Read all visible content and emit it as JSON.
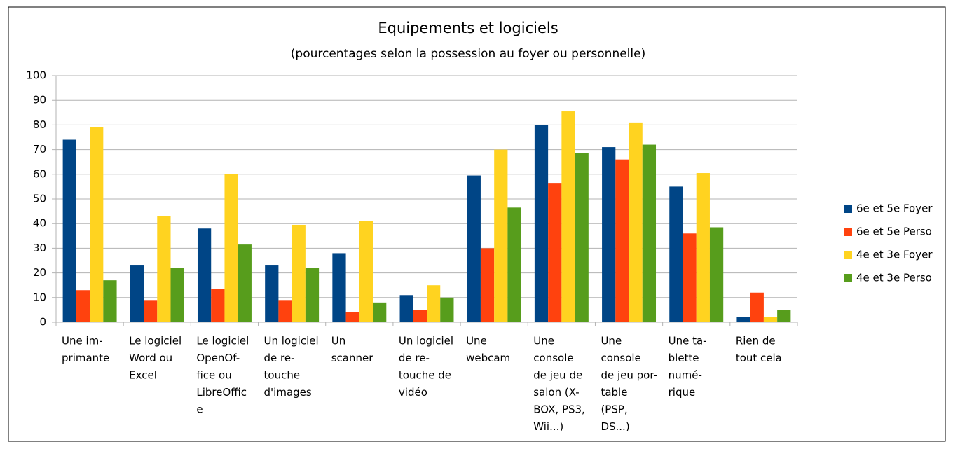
{
  "chart_data": {
    "type": "bar",
    "title": "Equipements et logiciels",
    "subtitle": "(pourcentages selon la possession au foyer ou personnelle)",
    "categories": [
      [
        "Une im-",
        "primante"
      ],
      [
        "Le logiciel",
        "Word ou",
        "Excel"
      ],
      [
        "Le logiciel",
        "OpenOf-",
        "fice ou",
        "LibreOffic",
        "e"
      ],
      [
        "Un logiciel",
        "de re-",
        "touche",
        "d'images"
      ],
      [
        "Un",
        "scanner"
      ],
      [
        "Un logiciel",
        "de re-",
        "touche de",
        "vidéo"
      ],
      [
        "Une",
        "webcam"
      ],
      [
        "Une",
        "console",
        "de jeu de",
        "salon (X-",
        "BOX, PS3,",
        "Wii...)"
      ],
      [
        "Une",
        "console",
        "de jeu por-",
        "table",
        "(PSP,",
        "DS...)"
      ],
      [
        "Une ta-",
        "blette",
        "numé-",
        "rique"
      ],
      [
        "Rien de",
        "tout cela"
      ]
    ],
    "series": [
      {
        "name": "6e et 5e Foyer",
        "color": "#004586",
        "values": [
          74,
          23,
          38,
          23,
          28,
          11,
          59.5,
          80,
          71,
          55,
          2
        ]
      },
      {
        "name": "6e et 5e Perso",
        "color": "#ff420e",
        "values": [
          13,
          9,
          13.5,
          9,
          4,
          5,
          30,
          56.5,
          66,
          36,
          12
        ]
      },
      {
        "name": "4e et 3e Foyer",
        "color": "#ffd320",
        "values": [
          79,
          43,
          60,
          39.5,
          41,
          15,
          70,
          85.5,
          81,
          60.5,
          2
        ]
      },
      {
        "name": "4e et 3e Perso",
        "color": "#579d1c",
        "values": [
          17,
          22,
          31.5,
          22,
          8,
          10,
          46.5,
          68.5,
          72,
          38.5,
          5
        ]
      }
    ],
    "ylim": [
      0,
      100
    ],
    "yticks": [
      0,
      10,
      20,
      30,
      40,
      50,
      60,
      70,
      80,
      90,
      100
    ],
    "grid": true,
    "legend": "right"
  }
}
